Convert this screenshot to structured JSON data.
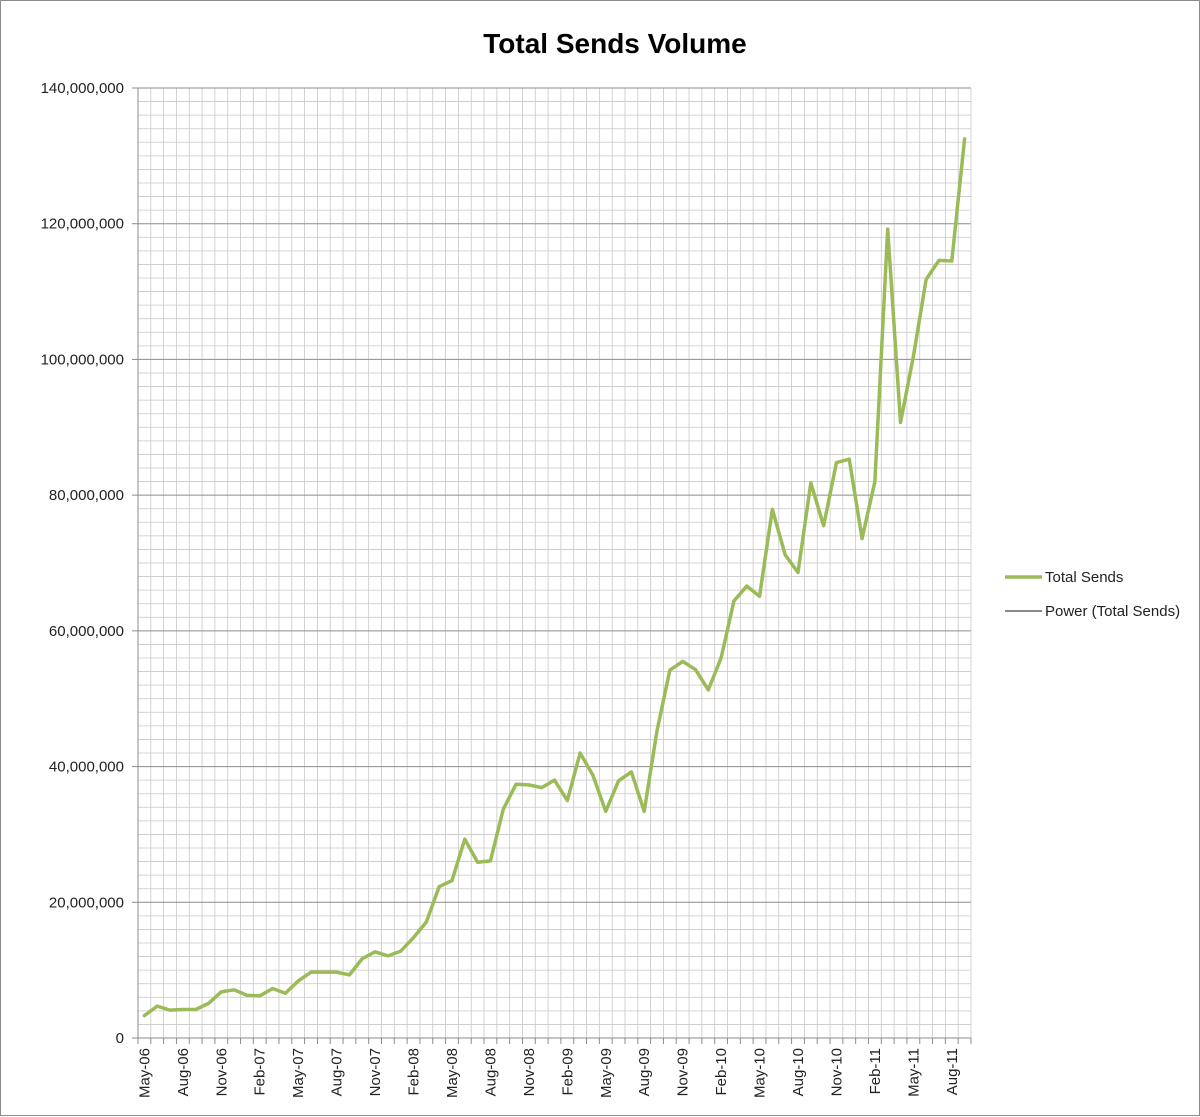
{
  "chart_data": {
    "type": "line",
    "title": "Total Sends Volume",
    "xlabel": "",
    "ylabel": "",
    "ylim": [
      0,
      140000000
    ],
    "y_ticks": [
      0,
      20000000,
      40000000,
      60000000,
      80000000,
      100000000,
      120000000,
      140000000
    ],
    "y_tick_labels": [
      "0",
      "20,000,000",
      "40,000,000",
      "60,000,000",
      "80,000,000",
      "100,000,000",
      "120,000,000",
      "140,000,000"
    ],
    "x_tick_labels": [
      "May-06",
      "Aug-06",
      "Nov-06",
      "Feb-07",
      "May-07",
      "Aug-07",
      "Nov-07",
      "Feb-08",
      "May-08",
      "Aug-08",
      "Nov-08",
      "Feb-09",
      "May-09",
      "Aug-09",
      "Nov-09",
      "Feb-10",
      "May-10",
      "Aug-10",
      "Nov-10",
      "Feb-11",
      "May-11",
      "Aug-11"
    ],
    "grid": true,
    "legend_position": "right",
    "categories": [
      "May-06",
      "Jun-06",
      "Jul-06",
      "Aug-06",
      "Sep-06",
      "Oct-06",
      "Nov-06",
      "Dec-06",
      "Jan-07",
      "Feb-07",
      "Mar-07",
      "Apr-07",
      "May-07",
      "Jun-07",
      "Jul-07",
      "Aug-07",
      "Sep-07",
      "Oct-07",
      "Nov-07",
      "Dec-07",
      "Jan-08",
      "Feb-08",
      "Mar-08",
      "Apr-08",
      "May-08",
      "Jun-08",
      "Jul-08",
      "Aug-08",
      "Sep-08",
      "Oct-08",
      "Nov-08",
      "Dec-08",
      "Jan-09",
      "Feb-09",
      "Mar-09",
      "Apr-09",
      "May-09",
      "Jun-09",
      "Jul-09",
      "Aug-09",
      "Sep-09",
      "Oct-09",
      "Nov-09",
      "Dec-09",
      "Jan-10",
      "Feb-10",
      "Mar-10",
      "Apr-10",
      "May-10",
      "Jun-10",
      "Jul-10",
      "Aug-10",
      "Sep-10",
      "Oct-10",
      "Nov-10",
      "Dec-10",
      "Jan-11",
      "Feb-11",
      "Mar-11",
      "Apr-11",
      "May-11",
      "Jun-11",
      "Jul-11",
      "Aug-11",
      "Sep-11"
    ],
    "series": [
      {
        "name": "Total Sends",
        "color": "#9bbb59",
        "values": [
          3300000,
          4700000,
          4100000,
          4200000,
          4200000,
          5100000,
          6800000,
          7100000,
          6300000,
          6200000,
          7300000,
          6600000,
          8400000,
          9700000,
          9700000,
          9700000,
          9300000,
          11700000,
          12700000,
          12100000,
          12800000,
          14800000,
          17100000,
          22300000,
          23200000,
          29300000,
          25900000,
          26100000,
          33700000,
          37400000,
          37300000,
          36900000,
          38000000,
          35000000,
          42000000,
          38700000,
          33400000,
          37900000,
          39200000,
          33400000,
          45300000,
          54200000,
          55500000,
          54300000,
          51300000,
          56000000,
          64400000,
          66600000,
          65100000,
          77900000,
          71200000,
          68600000,
          81800000,
          75500000,
          84800000,
          85300000,
          73600000,
          82000000,
          119200000,
          90700000,
          100400000,
          111800000,
          114600000,
          114500000,
          132500000
        ]
      }
    ],
    "legend": [
      {
        "label": "Total Sends",
        "color": "#9bbb59",
        "style": "thick"
      },
      {
        "label": "Power (Total Sends)",
        "color": "#404040",
        "style": "thin"
      }
    ]
  }
}
